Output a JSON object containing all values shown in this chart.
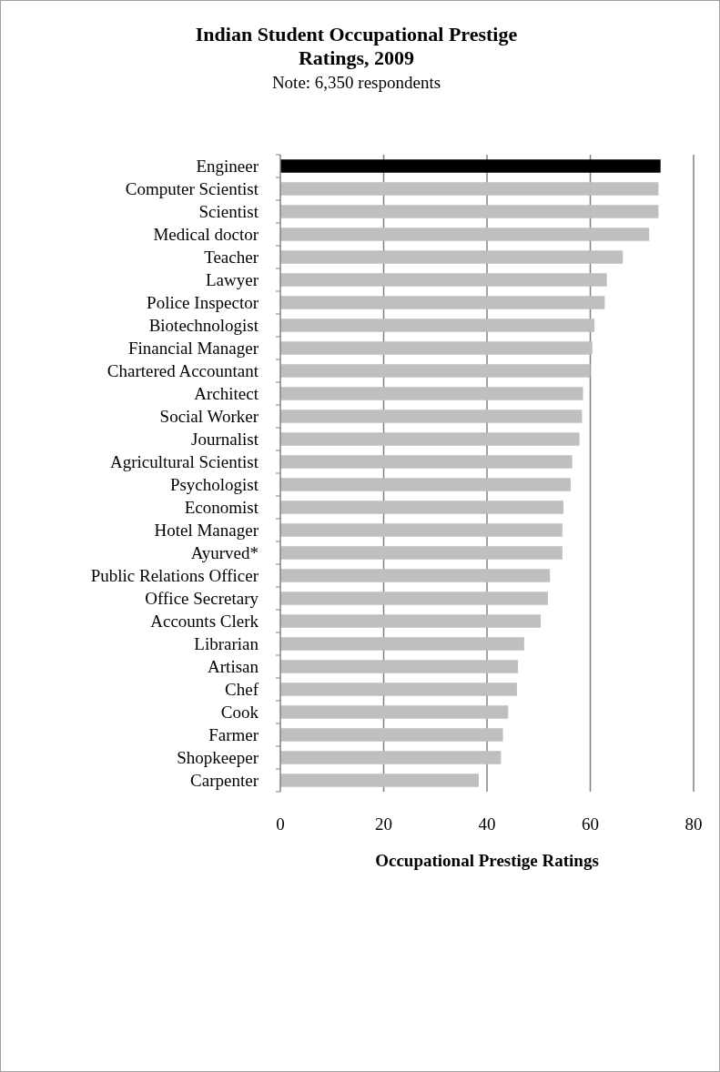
{
  "chart_data": {
    "type": "bar",
    "orientation": "horizontal",
    "title": "Indian Student Occupational Prestige Ratings, 2009",
    "subtitle": "Note: 6,350 respondents",
    "xlabel": "Occupational Prestige Ratings",
    "categories": [
      "Engineer",
      "Computer Scientist",
      "Scientist",
      "Medical doctor",
      "Teacher",
      "Lawyer",
      "Police Inspector",
      "Biotechnologist",
      "Financial Manager",
      "Chartered Accountant",
      "Architect",
      "Social Worker",
      "Journalist",
      "Agricultural Scientist",
      "Psychologist",
      "Economist",
      "Hotel Manager",
      "Ayurved*",
      "Public Relations Officer",
      "Office Secretary",
      "Accounts Clerk",
      "Librarian",
      "Artisan",
      "Chef",
      "Cook",
      "Farmer",
      "Shopkeeper",
      "Carpenter"
    ],
    "values": [
      73.6,
      73.2,
      73.2,
      71.4,
      66.3,
      63.2,
      62.8,
      60.8,
      60.4,
      60.0,
      58.6,
      58.4,
      57.9,
      56.5,
      56.2,
      54.8,
      54.6,
      54.6,
      52.2,
      51.8,
      50.4,
      47.2,
      46.0,
      45.8,
      44.1,
      43.1,
      42.7,
      38.4
    ],
    "colors": [
      "#000000",
      "#bfbfbf",
      "#bfbfbf",
      "#bfbfbf",
      "#bfbfbf",
      "#bfbfbf",
      "#bfbfbf",
      "#bfbfbf",
      "#bfbfbf",
      "#bfbfbf",
      "#bfbfbf",
      "#bfbfbf",
      "#bfbfbf",
      "#bfbfbf",
      "#bfbfbf",
      "#bfbfbf",
      "#bfbfbf",
      "#bfbfbf",
      "#bfbfbf",
      "#bfbfbf",
      "#bfbfbf",
      "#bfbfbf",
      "#bfbfbf",
      "#bfbfbf",
      "#bfbfbf",
      "#bfbfbf",
      "#bfbfbf",
      "#bfbfbf"
    ],
    "xlim": [
      0,
      80
    ],
    "xticks": [
      0,
      20,
      40,
      60,
      80
    ],
    "grid": "x"
  }
}
